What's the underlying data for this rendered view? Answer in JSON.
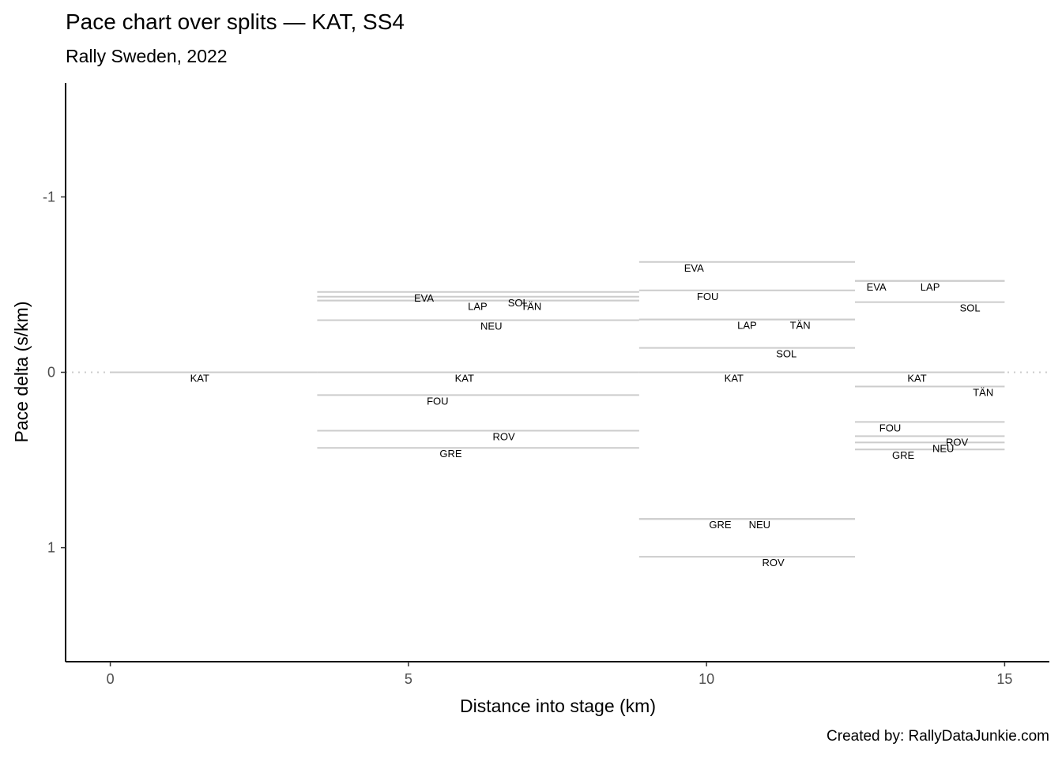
{
  "chart_data": {
    "type": "line",
    "title": "Pace chart over splits — KAT, SS4",
    "subtitle": "Rally Sweden, 2022",
    "caption": "Created by: RallyDataJunkie.com",
    "xlabel": "Distance into stage (km)",
    "ylabel": "Pace delta (s/km)",
    "xlim": [
      -0.75,
      15.75
    ],
    "ylim": [
      -1.65,
      1.65
    ],
    "y_reversed": true,
    "xticks": [
      0,
      5,
      10,
      15
    ],
    "yticks": [
      -1,
      0,
      1
    ],
    "reference_line": 0,
    "grid": false,
    "splits": [
      {
        "start": 0,
        "end": 3.47,
        "entries": [
          {
            "driver": "KAT",
            "value": 0,
            "label_x": 1.5
          }
        ]
      },
      {
        "start": 3.47,
        "end": 8.87,
        "entries": [
          {
            "driver": "EVA",
            "value": -0.458,
            "label_x": 5.26
          },
          {
            "driver": "SOL",
            "value": -0.431,
            "label_x": 6.84
          },
          {
            "driver": "LAP",
            "value": -0.409,
            "label_x": 6.16
          },
          {
            "driver": "TÄN",
            "value": -0.409,
            "label_x": 7.06
          },
          {
            "driver": "NEU",
            "value": -0.297,
            "label_x": 6.39
          },
          {
            "driver": "KAT",
            "value": 0,
            "label_x": 5.94
          },
          {
            "driver": "FOU",
            "value": 0.13,
            "label_x": 5.49
          },
          {
            "driver": "ROV",
            "value": 0.333,
            "label_x": 6.6
          },
          {
            "driver": "GRE",
            "value": 0.431,
            "label_x": 5.71
          }
        ]
      },
      {
        "start": 8.87,
        "end": 12.49,
        "entries": [
          {
            "driver": "EVA",
            "value": -0.629,
            "label_x": 9.79
          },
          {
            "driver": "FOU",
            "value": -0.467,
            "label_x": 10.02
          },
          {
            "driver": "LAP",
            "value": -0.301,
            "label_x": 10.68
          },
          {
            "driver": "TÄN",
            "value": -0.301,
            "label_x": 11.57
          },
          {
            "driver": "SOL",
            "value": -0.139,
            "label_x": 11.34
          },
          {
            "driver": "KAT",
            "value": 0,
            "label_x": 10.46
          },
          {
            "driver": "GRE",
            "value": 0.836,
            "label_x": 10.23
          },
          {
            "driver": "NEU",
            "value": 0.836,
            "label_x": 10.89
          },
          {
            "driver": "ROV",
            "value": 1.052,
            "label_x": 11.12
          }
        ]
      },
      {
        "start": 12.49,
        "end": 15.0,
        "entries": [
          {
            "driver": "EVA",
            "value": -0.521,
            "label_x": 12.85
          },
          {
            "driver": "LAP",
            "value": -0.521,
            "label_x": 13.75
          },
          {
            "driver": "SOL",
            "value": -0.4,
            "label_x": 14.42
          },
          {
            "driver": "KAT",
            "value": 0,
            "label_x": 13.53
          },
          {
            "driver": "TÄN",
            "value": 0.081,
            "label_x": 14.64
          },
          {
            "driver": "FOU",
            "value": 0.283,
            "label_x": 13.08
          },
          {
            "driver": "ROV",
            "value": 0.364,
            "label_x": 14.2
          },
          {
            "driver": "NEU",
            "value": 0.4,
            "label_x": 13.97
          },
          {
            "driver": "GRE",
            "value": 0.44,
            "label_x": 13.3
          }
        ]
      }
    ],
    "colors": {
      "segment": "#cccccc",
      "reference": "#cccccc",
      "axis": "#000000"
    }
  }
}
